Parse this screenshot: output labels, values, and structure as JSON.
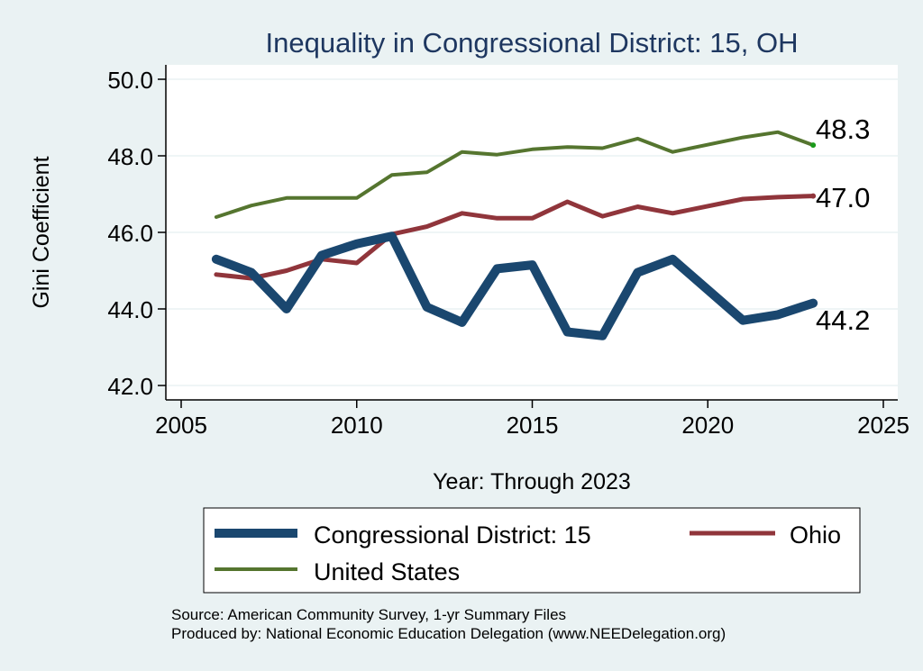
{
  "chart_data": {
    "type": "line",
    "title": "Inequality in Congressional District:  15, OH",
    "xlabel": "Year: Through 2023",
    "ylabel": "Gini Coefficient",
    "xlim": [
      2005,
      2025
    ],
    "ylim": [
      42,
      50
    ],
    "x_ticks": [
      "2005",
      "2010",
      "2015",
      "2020",
      "2025"
    ],
    "y_ticks": [
      "42.0",
      "44.0",
      "46.0",
      "48.0",
      "50.0"
    ],
    "grid": "horizontal",
    "legend_position": "bottom",
    "series": [
      {
        "name": "Congressional District:  15",
        "color": "#1a476f",
        "end_label": "44.2",
        "x": [
          2006,
          2007,
          2008,
          2009,
          2010,
          2011,
          2012,
          2013,
          2014,
          2015,
          2016,
          2017,
          2018,
          2019,
          2021,
          2022,
          2023
        ],
        "y": [
          45.3,
          44.95,
          44.0,
          45.4,
          45.7,
          45.9,
          44.05,
          43.65,
          45.05,
          45.15,
          43.4,
          43.3,
          44.95,
          45.3,
          43.7,
          43.85,
          44.15
        ]
      },
      {
        "name": "Ohio",
        "color": "#90353b",
        "end_label": "47.0",
        "x": [
          2006,
          2007,
          2008,
          2009,
          2010,
          2011,
          2012,
          2013,
          2014,
          2015,
          2016,
          2017,
          2018,
          2019,
          2021,
          2022,
          2023
        ],
        "y": [
          44.9,
          44.8,
          45.0,
          45.3,
          45.2,
          45.95,
          46.15,
          46.5,
          46.37,
          46.37,
          46.8,
          46.42,
          46.67,
          46.5,
          46.87,
          46.92,
          46.95
        ]
      },
      {
        "name": "United States",
        "color": "#55752f",
        "end_label": "48.3",
        "x": [
          2006,
          2007,
          2008,
          2009,
          2010,
          2011,
          2012,
          2013,
          2014,
          2015,
          2016,
          2017,
          2018,
          2019,
          2021,
          2022,
          2023
        ],
        "y": [
          46.4,
          46.7,
          46.9,
          46.9,
          46.9,
          47.5,
          47.57,
          48.1,
          48.03,
          48.17,
          48.23,
          48.2,
          48.45,
          48.1,
          48.48,
          48.62,
          48.28
        ]
      }
    ]
  },
  "footer": {
    "source": "Source: American Community Survey, 1-yr Summary Files",
    "produced_by": "Produced by: National Economic Education Delegation (www.NEEDelegation.org)"
  }
}
